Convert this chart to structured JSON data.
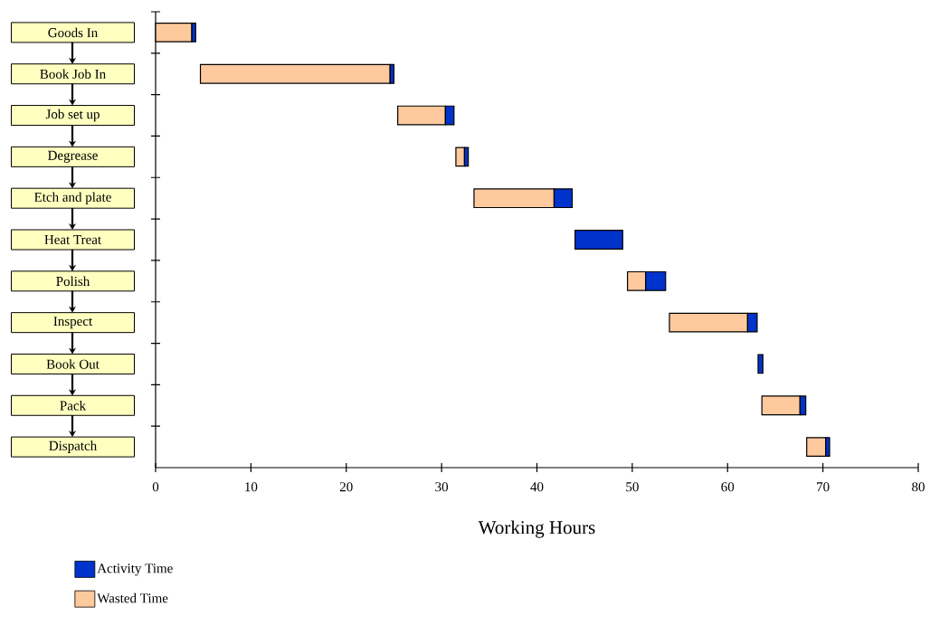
{
  "chart_data": {
    "type": "bar",
    "orientation": "horizontal",
    "categories": [
      "Goods In",
      "Book Job In",
      "Job set up",
      "Degrease",
      "Etch and plate",
      "Heat Treat",
      "Polish",
      "Inspect",
      "Book Out",
      "Pack",
      "Dispatch"
    ],
    "series": [
      {
        "name": "Wasted Time",
        "color": "#ffc99e",
        "base": [
          0,
          4.7,
          25.4,
          31.5,
          33.4,
          null,
          49.5,
          53.9,
          null,
          63.6,
          68.3
        ],
        "values": [
          3.8,
          19.9,
          5.0,
          0.9,
          8.4,
          null,
          1.9,
          8.2,
          null,
          4.0,
          2.0
        ]
      },
      {
        "name": "Activity Time",
        "color": "#0033cc",
        "base": [
          3.8,
          24.6,
          30.4,
          32.4,
          41.8,
          44.0,
          51.4,
          62.1,
          63.2,
          67.6,
          70.3
        ],
        "values": [
          0.4,
          0.4,
          0.9,
          0.4,
          1.9,
          5.0,
          2.1,
          1.0,
          0.5,
          0.6,
          0.4
        ]
      }
    ],
    "xlim": [
      0,
      80
    ],
    "xticks": [
      0,
      10,
      20,
      30,
      40,
      50,
      60,
      70,
      80
    ],
    "xlabel": "Working Hours",
    "legend": "bottom left"
  }
}
